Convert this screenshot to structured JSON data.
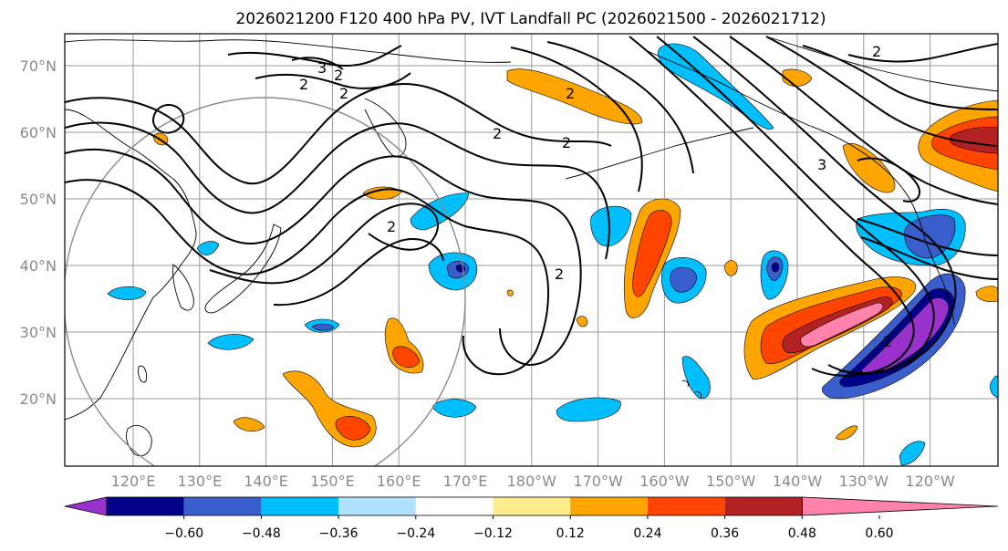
{
  "title": "2026021200 F120 400 hPa PV, IVT Landfall PC (2026021500 - 2026021712)",
  "map": {
    "lat_labels": [
      "70°N",
      "60°N",
      "50°N",
      "40°N",
      "30°N",
      "20°N"
    ],
    "lon_labels": [
      "120°E",
      "130°E",
      "140°E",
      "150°E",
      "160°E",
      "170°E",
      "180°W",
      "170°W",
      "160°W",
      "150°W",
      "140°W",
      "130°W",
      "120°W"
    ],
    "pv_contour_labels": [
      "3",
      "2",
      "2",
      "2",
      "2",
      "2",
      "2",
      "2",
      "2",
      "3",
      "2",
      "2"
    ]
  },
  "colorbar": {
    "tick_labels": [
      "−0.60",
      "−0.48",
      "−0.36",
      "−0.24",
      "−0.12",
      "0.12",
      "0.24",
      "0.36",
      "0.48",
      "0.60"
    ],
    "colors": [
      "#9932cc",
      "#00008b",
      "#3a5fcd",
      "#00bfff",
      "#b0e2ff",
      "#ffffff",
      "#ffec8b",
      "#ffa500",
      "#ff4500",
      "#b22222",
      "#ff82ab"
    ]
  }
}
